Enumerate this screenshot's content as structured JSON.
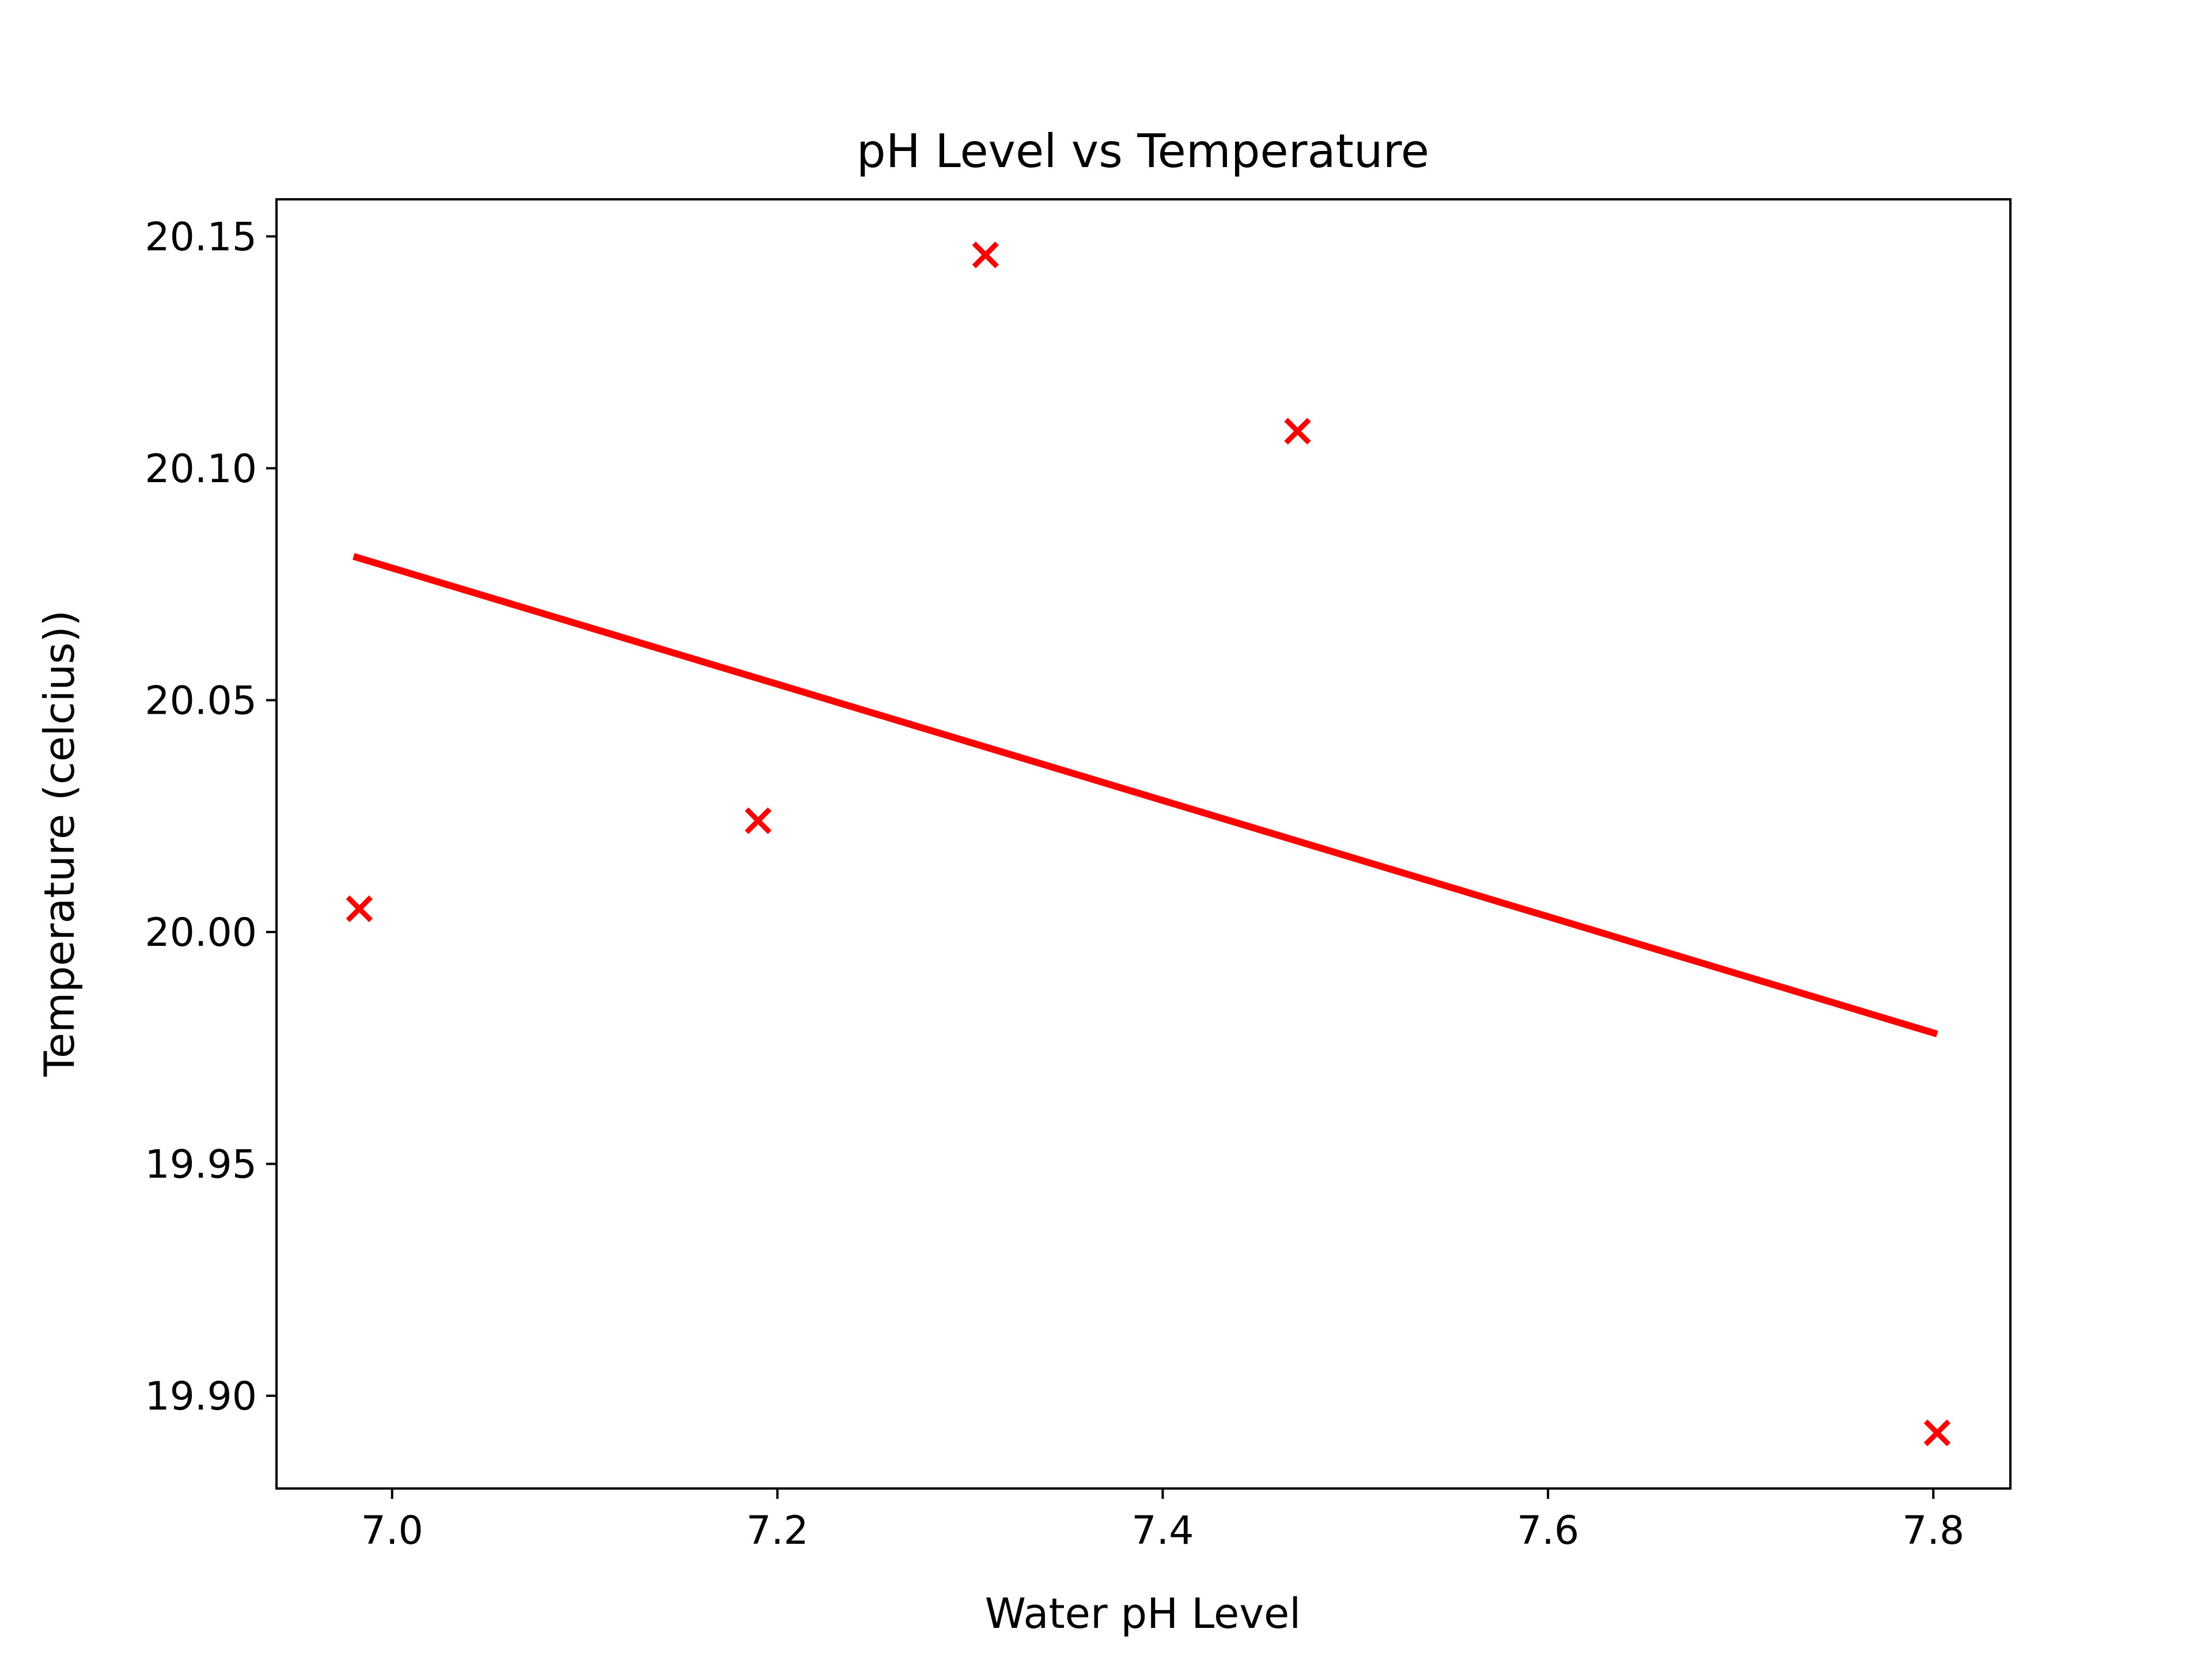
{
  "chart_data": {
    "type": "scatter",
    "title": "pH Level vs Temperature",
    "xlabel": "Water pH Level",
    "ylabel": "Temperature (celcius))",
    "xlim": [
      6.94,
      7.84
    ],
    "ylim": [
      19.88,
      20.158
    ],
    "x_ticks": [
      {
        "value": 7.0,
        "label": "7.0"
      },
      {
        "value": 7.2,
        "label": "7.2"
      },
      {
        "value": 7.4,
        "label": "7.4"
      },
      {
        "value": 7.6,
        "label": "7.6"
      },
      {
        "value": 7.8,
        "label": "7.8"
      }
    ],
    "y_ticks": [
      {
        "value": 19.9,
        "label": "19.90"
      },
      {
        "value": 19.95,
        "label": "19.95"
      },
      {
        "value": 20.0,
        "label": "20.00"
      },
      {
        "value": 20.05,
        "label": "20.05"
      },
      {
        "value": 20.1,
        "label": "20.10"
      },
      {
        "value": 20.15,
        "label": "20.15"
      }
    ],
    "grid": false,
    "legend": "none",
    "points": {
      "marker": "x",
      "color": "#ff0000",
      "x": [
        6.983,
        7.19,
        7.308,
        7.47,
        7.802
      ],
      "y": [
        20.005,
        20.024,
        20.146,
        20.108,
        19.892
      ]
    },
    "fit_line": {
      "color": "#ff0000",
      "x": [
        6.98,
        7.802
      ],
      "y": [
        20.081,
        19.978
      ]
    }
  }
}
